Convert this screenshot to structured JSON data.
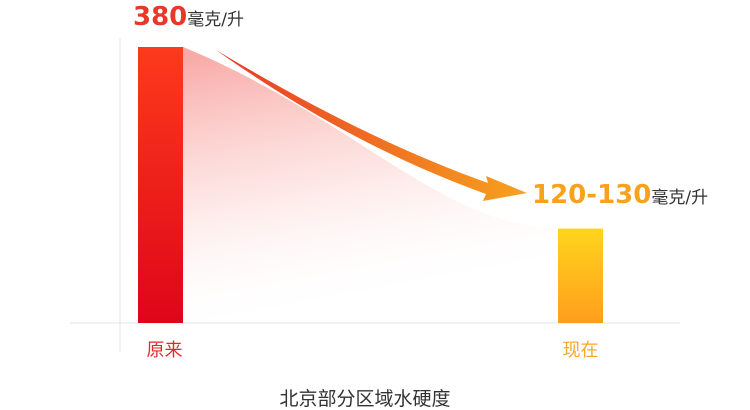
{
  "chart_data": {
    "type": "bar",
    "categories": [
      "原来",
      "现在"
    ],
    "values": [
      380,
      130
    ],
    "value_labels": [
      "380",
      "120-130"
    ],
    "value_unit": "毫克/升",
    "xlabel": "北京部分区域水硬度",
    "ylim": [
      0,
      380
    ],
    "grid": false,
    "colors": {
      "bar1_top": "#fd3a1c",
      "bar1_bottom": "#de0519",
      "bar2_top": "#ffd51e",
      "bar2_bottom": "#ff9e1c",
      "cat1": "#e4272a",
      "cat2": "#f7a829",
      "val1": "#e83828",
      "val2": "#f7a21e",
      "arrow_start": "#e83828",
      "arrow_end": "#f7a21e"
    }
  }
}
